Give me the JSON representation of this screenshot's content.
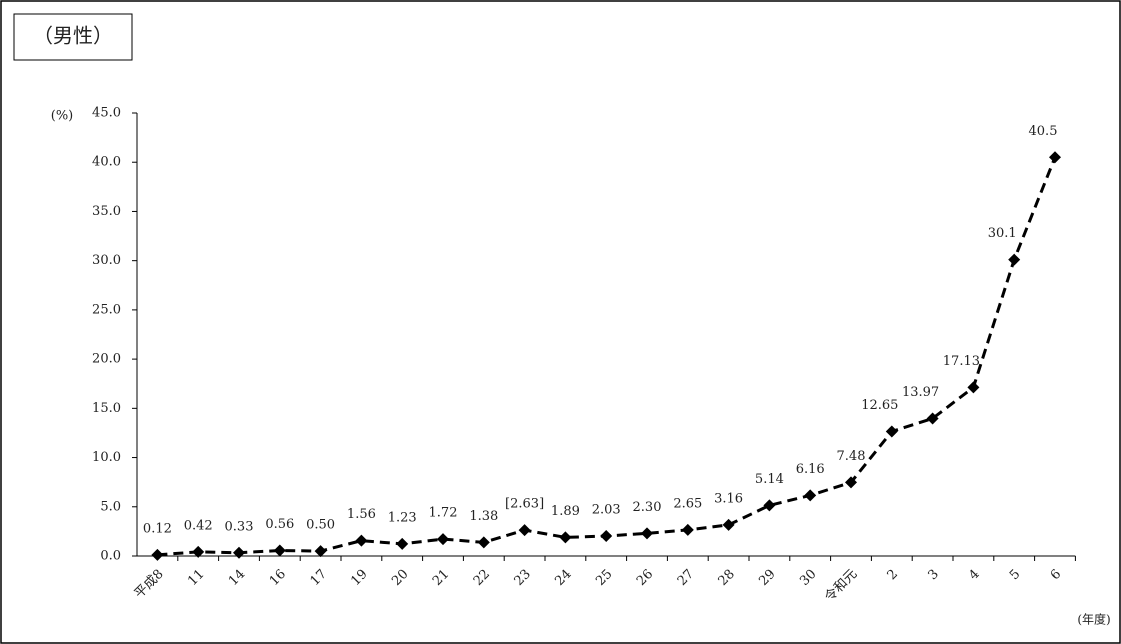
{
  "chart_data": {
    "type": "line",
    "title": "（男性）",
    "y_label": "(%)",
    "x_label": "(年度)",
    "categories": [
      "平成8",
      "11",
      "14",
      "16",
      "17",
      "19",
      "20",
      "21",
      "22",
      "23",
      "24",
      "25",
      "26",
      "27",
      "28",
      "29",
      "30",
      "令和元",
      "2",
      "3",
      "4",
      "5",
      "6"
    ],
    "series": [
      {
        "name": "男性",
        "color": "#000000",
        "values": [
          0.12,
          0.42,
          0.33,
          0.56,
          0.5,
          1.56,
          1.23,
          1.72,
          1.38,
          2.63,
          1.89,
          2.03,
          2.3,
          2.65,
          3.16,
          5.14,
          6.16,
          7.48,
          12.65,
          13.97,
          17.13,
          30.1,
          40.5
        ],
        "value_labels": [
          "0.12",
          "0.42",
          "0.33",
          "0.56",
          "0.50",
          "1.56",
          "1.23",
          "1.72",
          "1.38",
          "[2.63]",
          "1.89",
          "2.03",
          "2.30",
          "2.65",
          "3.16",
          "5.14",
          "6.16",
          "7.48",
          "12.65",
          "13.97",
          "17.13",
          "30.1",
          "40.5"
        ]
      }
    ],
    "ylim": [
      0,
      45
    ],
    "yticks": [
      {
        "value": 0,
        "label": "0.0"
      },
      {
        "value": 5,
        "label": "5.0"
      },
      {
        "value": 10,
        "label": "10.0"
      },
      {
        "value": 15,
        "label": "15.0"
      },
      {
        "value": 20,
        "label": "20.0"
      },
      {
        "value": 25,
        "label": "25.0"
      },
      {
        "value": 30,
        "label": "30.0"
      },
      {
        "value": 35,
        "label": "35.0"
      },
      {
        "value": 40,
        "label": "40.0"
      },
      {
        "value": 45,
        "label": "45.0"
      }
    ],
    "grid": false
  }
}
